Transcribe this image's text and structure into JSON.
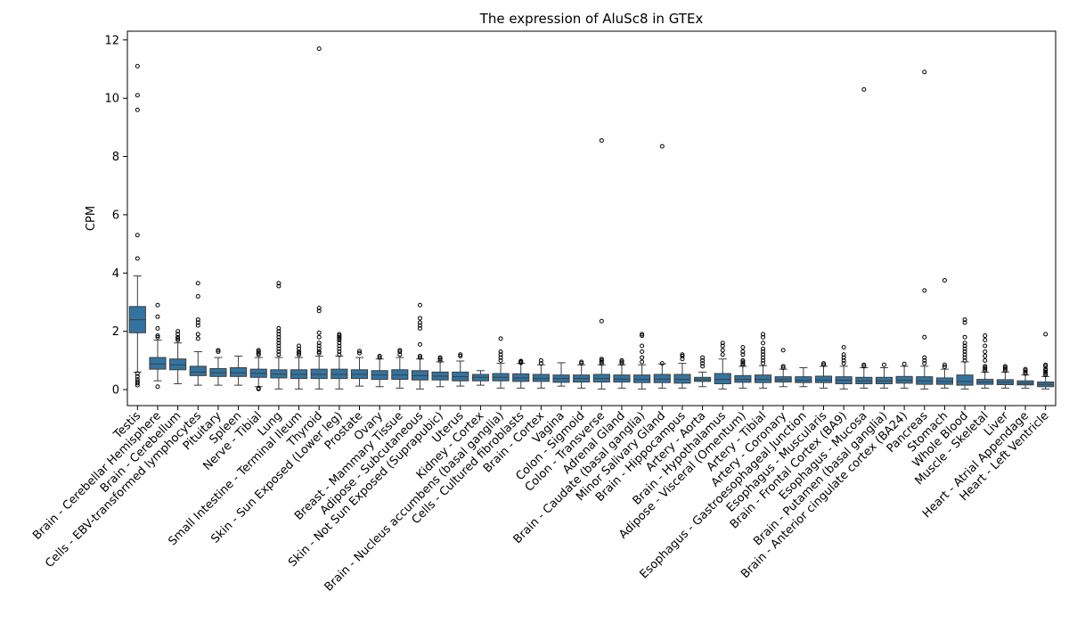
{
  "chart_data": {
    "type": "box",
    "title": "The expression of AluSc8 in GTEx",
    "xlabel": "",
    "ylabel": "CPM",
    "ylim": [
      -0.55,
      12.3
    ],
    "yticks": [
      0,
      2,
      4,
      6,
      8,
      10,
      12
    ],
    "grid": false,
    "legend": "none",
    "box_color": "#3274a1",
    "line_color": "#3d3d3d",
    "categories": [
      "Testis",
      "Brain - Cerebellar Hemisphere",
      "Brain - Cerebellum",
      "Cells - EBV-transformed lymphocytes",
      "Pituitary",
      "Spleen",
      "Nerve - Tibial",
      "Lung",
      "Small Intestine - Terminal Ileum",
      "Thyroid",
      "Skin - Sun Exposed (Lower leg)",
      "Prostate",
      "Ovary",
      "Breast - Mammary Tissue",
      "Adipose - Subcutaneous",
      "Skin - Not Sun Exposed (Suprapubic)",
      "Uterus",
      "Kidney - Cortex",
      "Brain - Nucleus accumbens (basal ganglia)",
      "Cells - Cultured fibroblasts",
      "Brain - Cortex",
      "Vagina",
      "Colon - Sigmoid",
      "Colon - Transverse",
      "Adrenal Gland",
      "Brain - Caudate (basal ganglia)",
      "Minor Salivary Gland",
      "Brain - Hippocampus",
      "Artery - Aorta",
      "Brain - Hypothalamus",
      "Adipose - Visceral (Omentum)",
      "Artery - Tibial",
      "Artery - Coronary",
      "Esophagus - Gastroesophageal Junction",
      "Esophagus - Muscularis",
      "Brain - Frontal Cortex (BA9)",
      "Esophagus - Mucosa",
      "Brain - Putamen (basal ganglia)",
      "Brain - Anterior cingulate cortex (BA24)",
      "Pancreas",
      "Stomach",
      "Whole Blood",
      "Muscle - Skeletal",
      "Liver",
      "Heart - Atrial Appendage",
      "Heart - Left Ventricle"
    ],
    "boxes": [
      {
        "whislo": 0.6,
        "q1": 1.95,
        "med": 2.4,
        "q3": 2.85,
        "whishi": 3.9,
        "fliers": [
          0.15,
          0.22,
          0.28,
          0.35,
          0.45,
          0.55,
          4.5,
          5.3,
          9.6,
          10.1,
          11.1
        ]
      },
      {
        "whislo": 0.3,
        "q1": 0.7,
        "med": 0.88,
        "q3": 1.1,
        "whishi": 1.7,
        "fliers": [
          0.1,
          1.8,
          1.85,
          2.1,
          2.5,
          2.9
        ]
      },
      {
        "whislo": 0.2,
        "q1": 0.68,
        "med": 0.85,
        "q3": 1.05,
        "whishi": 1.6,
        "fliers": [
          1.7,
          1.75,
          1.8,
          1.9,
          2.0
        ]
      },
      {
        "whislo": 0.15,
        "q1": 0.48,
        "med": 0.6,
        "q3": 0.8,
        "whishi": 1.3,
        "fliers": [
          1.75,
          1.9,
          2.2,
          2.3,
          2.4,
          3.2,
          3.65
        ]
      },
      {
        "whislo": 0.15,
        "q1": 0.45,
        "med": 0.58,
        "q3": 0.72,
        "whishi": 1.1,
        "fliers": [
          1.3,
          1.35
        ]
      },
      {
        "whislo": 0.15,
        "q1": 0.45,
        "med": 0.58,
        "q3": 0.75,
        "whishi": 1.15,
        "fliers": []
      },
      {
        "whislo": 0.1,
        "q1": 0.42,
        "med": 0.56,
        "q3": 0.7,
        "whishi": 1.1,
        "fliers": [
          0.02,
          0.05,
          1.2,
          1.25,
          1.3,
          1.35
        ]
      },
      {
        "whislo": 0.02,
        "q1": 0.4,
        "med": 0.53,
        "q3": 0.68,
        "whishi": 1.1,
        "fliers": [
          1.2,
          1.3,
          1.4,
          1.5,
          1.6,
          1.7,
          1.8,
          1.9,
          2.0,
          2.1,
          3.55,
          3.65
        ]
      },
      {
        "whislo": 0.02,
        "q1": 0.38,
        "med": 0.52,
        "q3": 0.68,
        "whishi": 1.1,
        "fliers": [
          1.2,
          1.25,
          1.3,
          1.4,
          1.5
        ]
      },
      {
        "whislo": 0.02,
        "q1": 0.38,
        "med": 0.52,
        "q3": 0.7,
        "whishi": 1.15,
        "fliers": [
          1.25,
          1.3,
          1.4,
          1.5,
          1.6,
          1.8,
          1.95,
          2.7,
          2.8,
          11.7
        ]
      },
      {
        "whislo": 0.02,
        "q1": 0.38,
        "med": 0.52,
        "q3": 0.7,
        "whishi": 1.15,
        "fliers": [
          1.2,
          1.3,
          1.4,
          1.5,
          1.6,
          1.7,
          1.75,
          1.8,
          1.85,
          1.9
        ]
      },
      {
        "whislo": 0.12,
        "q1": 0.38,
        "med": 0.52,
        "q3": 0.68,
        "whishi": 1.1,
        "fliers": [
          1.25,
          1.32
        ]
      },
      {
        "whislo": 0.1,
        "q1": 0.35,
        "med": 0.5,
        "q3": 0.65,
        "whishi": 1.05,
        "fliers": [
          1.1,
          1.15
        ]
      },
      {
        "whislo": 0.05,
        "q1": 0.35,
        "med": 0.5,
        "q3": 0.68,
        "whishi": 1.1,
        "fliers": [
          1.2,
          1.3,
          1.35
        ]
      },
      {
        "whislo": 0.02,
        "q1": 0.33,
        "med": 0.48,
        "q3": 0.65,
        "whishi": 1.05,
        "fliers": [
          1.1,
          1.15,
          1.55,
          2.1,
          2.2,
          2.3,
          2.45,
          2.9
        ]
      },
      {
        "whislo": 0.1,
        "q1": 0.33,
        "med": 0.46,
        "q3": 0.6,
        "whishi": 0.95,
        "fliers": [
          1.0,
          1.05,
          1.1
        ]
      },
      {
        "whislo": 0.12,
        "q1": 0.3,
        "med": 0.44,
        "q3": 0.6,
        "whishi": 0.98,
        "fliers": [
          1.15,
          1.2
        ]
      },
      {
        "whislo": 0.15,
        "q1": 0.3,
        "med": 0.42,
        "q3": 0.52,
        "whishi": 0.65,
        "fliers": []
      },
      {
        "whislo": 0.05,
        "q1": 0.3,
        "med": 0.42,
        "q3": 0.55,
        "whishi": 0.9,
        "fliers": [
          1.0,
          1.1,
          1.2,
          1.3,
          1.75
        ]
      },
      {
        "whislo": 0.05,
        "q1": 0.28,
        "med": 0.4,
        "q3": 0.54,
        "whishi": 0.9,
        "fliers": [
          0.92,
          0.95,
          0.98
        ]
      },
      {
        "whislo": 0.05,
        "q1": 0.28,
        "med": 0.38,
        "q3": 0.52,
        "whishi": 0.85,
        "fliers": [
          0.9,
          1.0
        ]
      },
      {
        "whislo": 0.12,
        "q1": 0.25,
        "med": 0.38,
        "q3": 0.5,
        "whishi": 0.92,
        "fliers": []
      },
      {
        "whislo": 0.05,
        "q1": 0.26,
        "med": 0.38,
        "q3": 0.5,
        "whishi": 0.85,
        "fliers": [
          0.9,
          0.95
        ]
      },
      {
        "whislo": 0.02,
        "q1": 0.26,
        "med": 0.38,
        "q3": 0.52,
        "whishi": 0.85,
        "fliers": [
          0.9,
          0.95,
          1.0,
          1.05,
          2.35,
          8.55
        ]
      },
      {
        "whislo": 0.05,
        "q1": 0.26,
        "med": 0.36,
        "q3": 0.5,
        "whishi": 0.85,
        "fliers": [
          0.9,
          0.95,
          1.0
        ]
      },
      {
        "whislo": 0.02,
        "q1": 0.24,
        "med": 0.35,
        "q3": 0.5,
        "whishi": 0.85,
        "fliers": [
          0.95,
          1.1,
          1.3,
          1.5,
          1.85,
          1.9
        ]
      },
      {
        "whislo": 0.05,
        "q1": 0.24,
        "med": 0.36,
        "q3": 0.52,
        "whishi": 0.88,
        "fliers": [
          0.9,
          8.35
        ]
      },
      {
        "whislo": 0.05,
        "q1": 0.22,
        "med": 0.35,
        "q3": 0.52,
        "whishi": 0.9,
        "fliers": [
          1.05,
          1.15,
          1.2
        ]
      },
      {
        "whislo": 0.1,
        "q1": 0.28,
        "med": 0.34,
        "q3": 0.42,
        "whishi": 0.6,
        "fliers": [
          0.8,
          0.9,
          1.0,
          1.1
        ]
      },
      {
        "whislo": 0.02,
        "q1": 0.2,
        "med": 0.35,
        "q3": 0.55,
        "whishi": 1.05,
        "fliers": [
          1.2,
          1.35,
          1.5,
          1.6
        ]
      },
      {
        "whislo": 0.05,
        "q1": 0.25,
        "med": 0.35,
        "q3": 0.48,
        "whishi": 0.8,
        "fliers": [
          0.85,
          0.9,
          0.95,
          1.0,
          1.2,
          1.3,
          1.45
        ]
      },
      {
        "whislo": 0.05,
        "q1": 0.24,
        "med": 0.35,
        "q3": 0.5,
        "whishi": 0.82,
        "fliers": [
          0.9,
          1.0,
          1.1,
          1.2,
          1.3,
          1.4,
          1.6,
          1.8,
          1.9
        ]
      },
      {
        "whislo": 0.1,
        "q1": 0.26,
        "med": 0.34,
        "q3": 0.44,
        "whishi": 0.7,
        "fliers": [
          0.75,
          0.8,
          1.35
        ]
      },
      {
        "whislo": 0.1,
        "q1": 0.24,
        "med": 0.32,
        "q3": 0.44,
        "whishi": 0.75,
        "fliers": []
      },
      {
        "whislo": 0.05,
        "q1": 0.24,
        "med": 0.33,
        "q3": 0.46,
        "whishi": 0.8,
        "fliers": [
          0.85,
          0.9
        ]
      },
      {
        "whislo": 0.02,
        "q1": 0.2,
        "med": 0.32,
        "q3": 0.44,
        "whishi": 0.8,
        "fliers": [
          0.9,
          1.0,
          1.1,
          1.2,
          1.45
        ]
      },
      {
        "whislo": 0.05,
        "q1": 0.2,
        "med": 0.3,
        "q3": 0.42,
        "whishi": 0.75,
        "fliers": [
          0.8,
          0.85,
          10.3
        ]
      },
      {
        "whislo": 0.05,
        "q1": 0.2,
        "med": 0.3,
        "q3": 0.42,
        "whishi": 0.75,
        "fliers": [
          0.85
        ]
      },
      {
        "whislo": 0.05,
        "q1": 0.22,
        "med": 0.32,
        "q3": 0.45,
        "whishi": 0.8,
        "fliers": [
          0.88
        ]
      },
      {
        "whislo": 0.02,
        "q1": 0.18,
        "med": 0.3,
        "q3": 0.44,
        "whishi": 0.8,
        "fliers": [
          0.9,
          1.0,
          1.1,
          1.8,
          3.4,
          10.9
        ]
      },
      {
        "whislo": 0.05,
        "q1": 0.18,
        "med": 0.28,
        "q3": 0.4,
        "whishi": 0.7,
        "fliers": [
          0.78,
          0.85,
          3.75
        ]
      },
      {
        "whislo": 0.02,
        "q1": 0.15,
        "med": 0.28,
        "q3": 0.5,
        "whishi": 0.95,
        "fliers": [
          1.0,
          1.1,
          1.2,
          1.3,
          1.4,
          1.5,
          1.6,
          1.8,
          2.3,
          2.4
        ]
      },
      {
        "whislo": 0.05,
        "q1": 0.18,
        "med": 0.26,
        "q3": 0.35,
        "whishi": 0.6,
        "fliers": [
          0.65,
          0.7,
          0.75,
          0.8,
          1.0,
          1.15,
          1.3,
          1.5,
          1.7,
          1.85
        ]
      },
      {
        "whislo": 0.05,
        "q1": 0.17,
        "med": 0.25,
        "q3": 0.34,
        "whishi": 0.6,
        "fliers": [
          0.65,
          0.7,
          0.75,
          0.8
        ]
      },
      {
        "whislo": 0.05,
        "q1": 0.16,
        "med": 0.22,
        "q3": 0.3,
        "whishi": 0.5,
        "fliers": [
          0.55,
          0.6,
          0.65,
          0.7
        ]
      },
      {
        "whislo": 0.02,
        "q1": 0.1,
        "med": 0.18,
        "q3": 0.26,
        "whishi": 0.45,
        "fliers": [
          0.5,
          0.55,
          0.6,
          0.65,
          0.7,
          0.8,
          0.85,
          1.9
        ]
      }
    ]
  }
}
